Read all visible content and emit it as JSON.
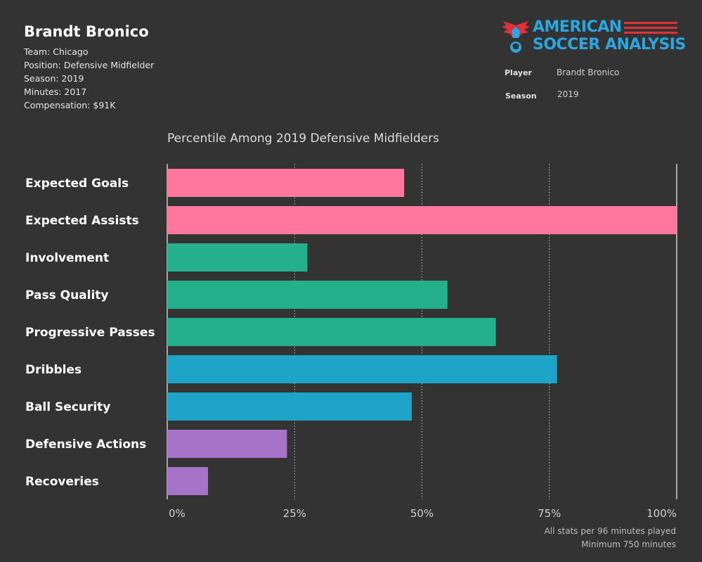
{
  "player": {
    "name": "Brandt Bronico",
    "info": [
      "Team: Chicago",
      "Position: Defensive Midfielder",
      "Season: 2019",
      "Minutes: 2017",
      "Compensation: $91K"
    ]
  },
  "logo": {
    "line1": "AMERICAN",
    "line2": "SOCCER ANALYSIS"
  },
  "filters": {
    "player_label": "Player",
    "player_value": "Brandt Bronico",
    "season_label": "Season",
    "season_value": "2019"
  },
  "footnote": {
    "line1": "All stats per 96 minutes played",
    "line2": "Minimum 750 minutes"
  },
  "colors": {
    "background": "#333333",
    "pink": "#ff779f",
    "green": "#23b08a",
    "blue": "#1ea4c9",
    "purple": "#a673c8"
  },
  "chart_data": {
    "type": "bar",
    "orientation": "horizontal",
    "title": "Percentile Among 2019 Defensive Midfielders",
    "xlabel": "",
    "ylabel": "",
    "xlim": [
      0,
      100
    ],
    "x_ticks": [
      0,
      25,
      50,
      75,
      100
    ],
    "x_tick_labels": [
      "0%",
      "25%",
      "50%",
      "75%",
      "100%"
    ],
    "categories": [
      "Expected Goals",
      "Expected Assists",
      "Involvement",
      "Pass Quality",
      "Progressive Passes",
      "Dribbles",
      "Ball Security",
      "Defensive Actions",
      "Recoveries"
    ],
    "values": [
      46.5,
      100,
      27.5,
      55,
      64.5,
      76.5,
      48,
      23.5,
      8
    ],
    "bar_colors": [
      "#ff779f",
      "#ff779f",
      "#23b08a",
      "#23b08a",
      "#23b08a",
      "#1ea4c9",
      "#1ea4c9",
      "#a673c8",
      "#a673c8"
    ]
  }
}
